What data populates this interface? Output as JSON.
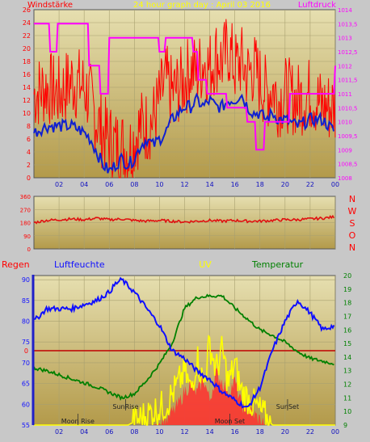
{
  "colors": {
    "background": "#c8c8c8",
    "plot_top": "#e6dfb0",
    "plot_bottom": "#b39a4a",
    "grid": "#a8a070",
    "wind": "#ff0000",
    "wind_avg": "#1020d0",
    "pressure": "#ff00ff",
    "direction": "#e01010",
    "rain": "#ff0000",
    "humidity": "#1010ff",
    "uv": "#ffff00",
    "temperature": "#008000",
    "solar": "#ff3030",
    "axis_left": "#2020c8"
  },
  "chart_data": [
    {
      "type": "line",
      "title": "24 hour graph day : April 03 2016",
      "left_label": "Windstärke",
      "right_label": "Luftdruck",
      "x_ticks": [
        "02",
        "04",
        "06",
        "08",
        "10",
        "12",
        "14",
        "16",
        "18",
        "20",
        "22",
        "00"
      ],
      "left_ticks": [
        "0",
        "2",
        "4",
        "6",
        "8",
        "10",
        "12",
        "14",
        "16",
        "18",
        "20",
        "22",
        "24",
        "26"
      ],
      "right_ticks": [
        "1008",
        "1008,5",
        "1009",
        "1009,5",
        "1010",
        "1010,5",
        "1011",
        "1011,5",
        "1012",
        "1012,5",
        "1013",
        "1013,5",
        "1014"
      ],
      "ylim_left": [
        0,
        26
      ],
      "ylim_right": [
        1008,
        1014
      ],
      "series": [
        {
          "name": "Windstärke",
          "axis": "left",
          "x": [
            0,
            1,
            2,
            3,
            4,
            4.5,
            5,
            5.5,
            6,
            6.5,
            7,
            7.5,
            8,
            8.5,
            9,
            9.5,
            10,
            10.5,
            11,
            11.5,
            12,
            12.5,
            13,
            13.5,
            14,
            14.5,
            15,
            15.5,
            16,
            16.5,
            17,
            17.5,
            18,
            18.5,
            19,
            19.5,
            20,
            21,
            22,
            23,
            24
          ],
          "values": [
            13,
            14,
            13,
            15,
            14,
            12,
            9,
            7,
            6,
            5,
            5,
            4,
            6,
            8,
            8,
            9,
            12,
            15,
            13,
            14,
            15,
            17,
            16,
            18,
            17,
            19,
            18,
            20,
            17,
            18,
            16,
            17,
            15,
            13,
            14,
            12,
            13,
            12,
            13,
            11,
            11
          ]
        },
        {
          "name": "Windstärke avg",
          "axis": "left",
          "x": [
            0,
            1,
            2,
            3,
            4,
            4.5,
            5,
            5.5,
            6,
            6.5,
            7,
            7.5,
            8,
            8.5,
            9,
            9.5,
            10,
            10.5,
            11,
            11.5,
            12,
            12.5,
            13,
            13.5,
            14,
            14.5,
            15,
            15.5,
            16,
            16.5,
            17,
            17.5,
            18,
            18.5,
            19,
            19.5,
            20,
            21,
            22,
            23,
            24
          ],
          "values": [
            7,
            8,
            8,
            8,
            7,
            6,
            4,
            2,
            1,
            2,
            3,
            2,
            3,
            5,
            6,
            5,
            6,
            7,
            9,
            10,
            11,
            11,
            12,
            11,
            12,
            11,
            11,
            12,
            12,
            13,
            11,
            10,
            10,
            9,
            10,
            9,
            9,
            8,
            9,
            9,
            7
          ]
        },
        {
          "name": "Luftdruck",
          "axis": "right",
          "x": [
            0,
            1.2,
            1.3,
            1.8,
            1.9,
            4.3,
            4.4,
            5.2,
            5.3,
            5.9,
            6,
            9.9,
            10,
            10.4,
            10.5,
            12.6,
            12.7,
            13,
            13.1,
            13.7,
            13.8,
            15.3,
            15.4,
            16.9,
            17,
            17.6,
            17.7,
            18.3,
            18.4,
            20.3,
            20.4,
            21.4,
            21.5,
            23.9,
            24
          ],
          "values": [
            1013.5,
            1013.5,
            1012.5,
            1012.5,
            1013.5,
            1013.5,
            1012,
            1012,
            1011,
            1011,
            1013,
            1013,
            1012.5,
            1012.5,
            1013,
            1013,
            1012.5,
            1012.5,
            1011.5,
            1011.5,
            1011,
            1011,
            1010.5,
            1010.5,
            1010,
            1010,
            1009,
            1009,
            1010,
            1010,
            1011,
            1011,
            1011,
            1011,
            1012
          ]
        }
      ]
    },
    {
      "type": "line",
      "left_ticks": [
        "0",
        "90",
        "180",
        "270",
        "360"
      ],
      "ylim": [
        0,
        360
      ],
      "compass_labels": [
        "N",
        "W",
        "S",
        "O",
        "N"
      ],
      "series": [
        {
          "name": "Windrichtung",
          "x": [
            0,
            1,
            2,
            3,
            4,
            5,
            6,
            7,
            8,
            9,
            10,
            11,
            12,
            13,
            14,
            15,
            16,
            17,
            18,
            19,
            20,
            21,
            22,
            23,
            24
          ],
          "values": [
            180,
            195,
            200,
            205,
            200,
            210,
            200,
            205,
            195,
            190,
            195,
            190,
            185,
            190,
            195,
            190,
            195,
            190,
            190,
            195,
            200,
            200,
            205,
            210,
            220
          ]
        }
      ]
    },
    {
      "type": "line",
      "labels": {
        "rain": "Regen",
        "humidity": "Luftfeuchte",
        "uv": "UV",
        "temperature": "Temperatur"
      },
      "x_ticks": [
        "02",
        "04",
        "06",
        "08",
        "10",
        "12",
        "14",
        "16",
        "18",
        "20",
        "22",
        "00"
      ],
      "left_ticks": [
        "55",
        "60",
        "65",
        "70",
        "75",
        "80",
        "85",
        "90"
      ],
      "right_ticks": [
        "9",
        "10",
        "11",
        "12",
        "13",
        "14",
        "15",
        "16",
        "17",
        "18",
        "19",
        "20"
      ],
      "rain_tick": "0",
      "ylim_left": [
        55,
        91
      ],
      "ylim_right": [
        9,
        20
      ],
      "annotations": [
        "SunRise",
        "SunSet",
        "Moon Rise",
        "Moon Set"
      ],
      "series": [
        {
          "name": "Luftfeuchte",
          "axis": "left",
          "x": [
            0,
            1,
            2,
            3,
            4,
            5,
            6,
            6.5,
            7,
            8,
            9,
            10,
            10.5,
            11,
            12,
            13,
            14,
            15,
            16,
            17,
            18,
            19,
            20,
            21,
            22,
            23,
            24
          ],
          "values": [
            80,
            83,
            83,
            83,
            84,
            85,
            87,
            89,
            90,
            87,
            83,
            79,
            76,
            73,
            71,
            68,
            66,
            63,
            61,
            59,
            64,
            73,
            80,
            85,
            82,
            78,
            79
          ]
        },
        {
          "name": "Temperatur",
          "axis": "right",
          "x": [
            0,
            1,
            2,
            3,
            4,
            5,
            6,
            7,
            8,
            9,
            10,
            11,
            12,
            13,
            14,
            15,
            16,
            17,
            18,
            19,
            20,
            21,
            22,
            23,
            24
          ],
          "values": [
            13.2,
            13.0,
            12.7,
            12.4,
            12.1,
            11.8,
            11.4,
            11.0,
            11.3,
            12.3,
            13.5,
            15.0,
            17.6,
            18.4,
            18.5,
            18.5,
            17.6,
            16.8,
            16.0,
            15.6,
            15.1,
            14.4,
            13.9,
            13.7,
            13.5
          ]
        },
        {
          "name": "UV",
          "axis": "right",
          "x": [
            0,
            7.5,
            8.5,
            9.5,
            10.5,
            11.5,
            12,
            12.5,
            13,
            13.5,
            14,
            14.5,
            15,
            15.5,
            16,
            16.5,
            17,
            17.5,
            18,
            18.5,
            19,
            24
          ],
          "values": [
            9,
            9,
            9.5,
            10,
            10.5,
            12,
            13,
            11.5,
            14,
            12,
            15,
            13,
            14.5,
            12,
            13.5,
            11.5,
            11,
            10.5,
            10,
            9.5,
            9,
            9
          ]
        },
        {
          "name": "Sonnenstrahlung",
          "axis": "right",
          "x": [
            0,
            9.5,
            10.5,
            11.5,
            12,
            12.5,
            13,
            13.5,
            14,
            14.5,
            15,
            15.5,
            16,
            16.5,
            17,
            17.5,
            18,
            18.5,
            24
          ],
          "values": [
            9,
            9,
            9.3,
            10.5,
            11.5,
            12,
            11.3,
            12.5,
            10.8,
            12.8,
            12.2,
            11.5,
            12.2,
            10.5,
            10.2,
            9.8,
            9.4,
            9,
            9
          ]
        }
      ]
    }
  ]
}
